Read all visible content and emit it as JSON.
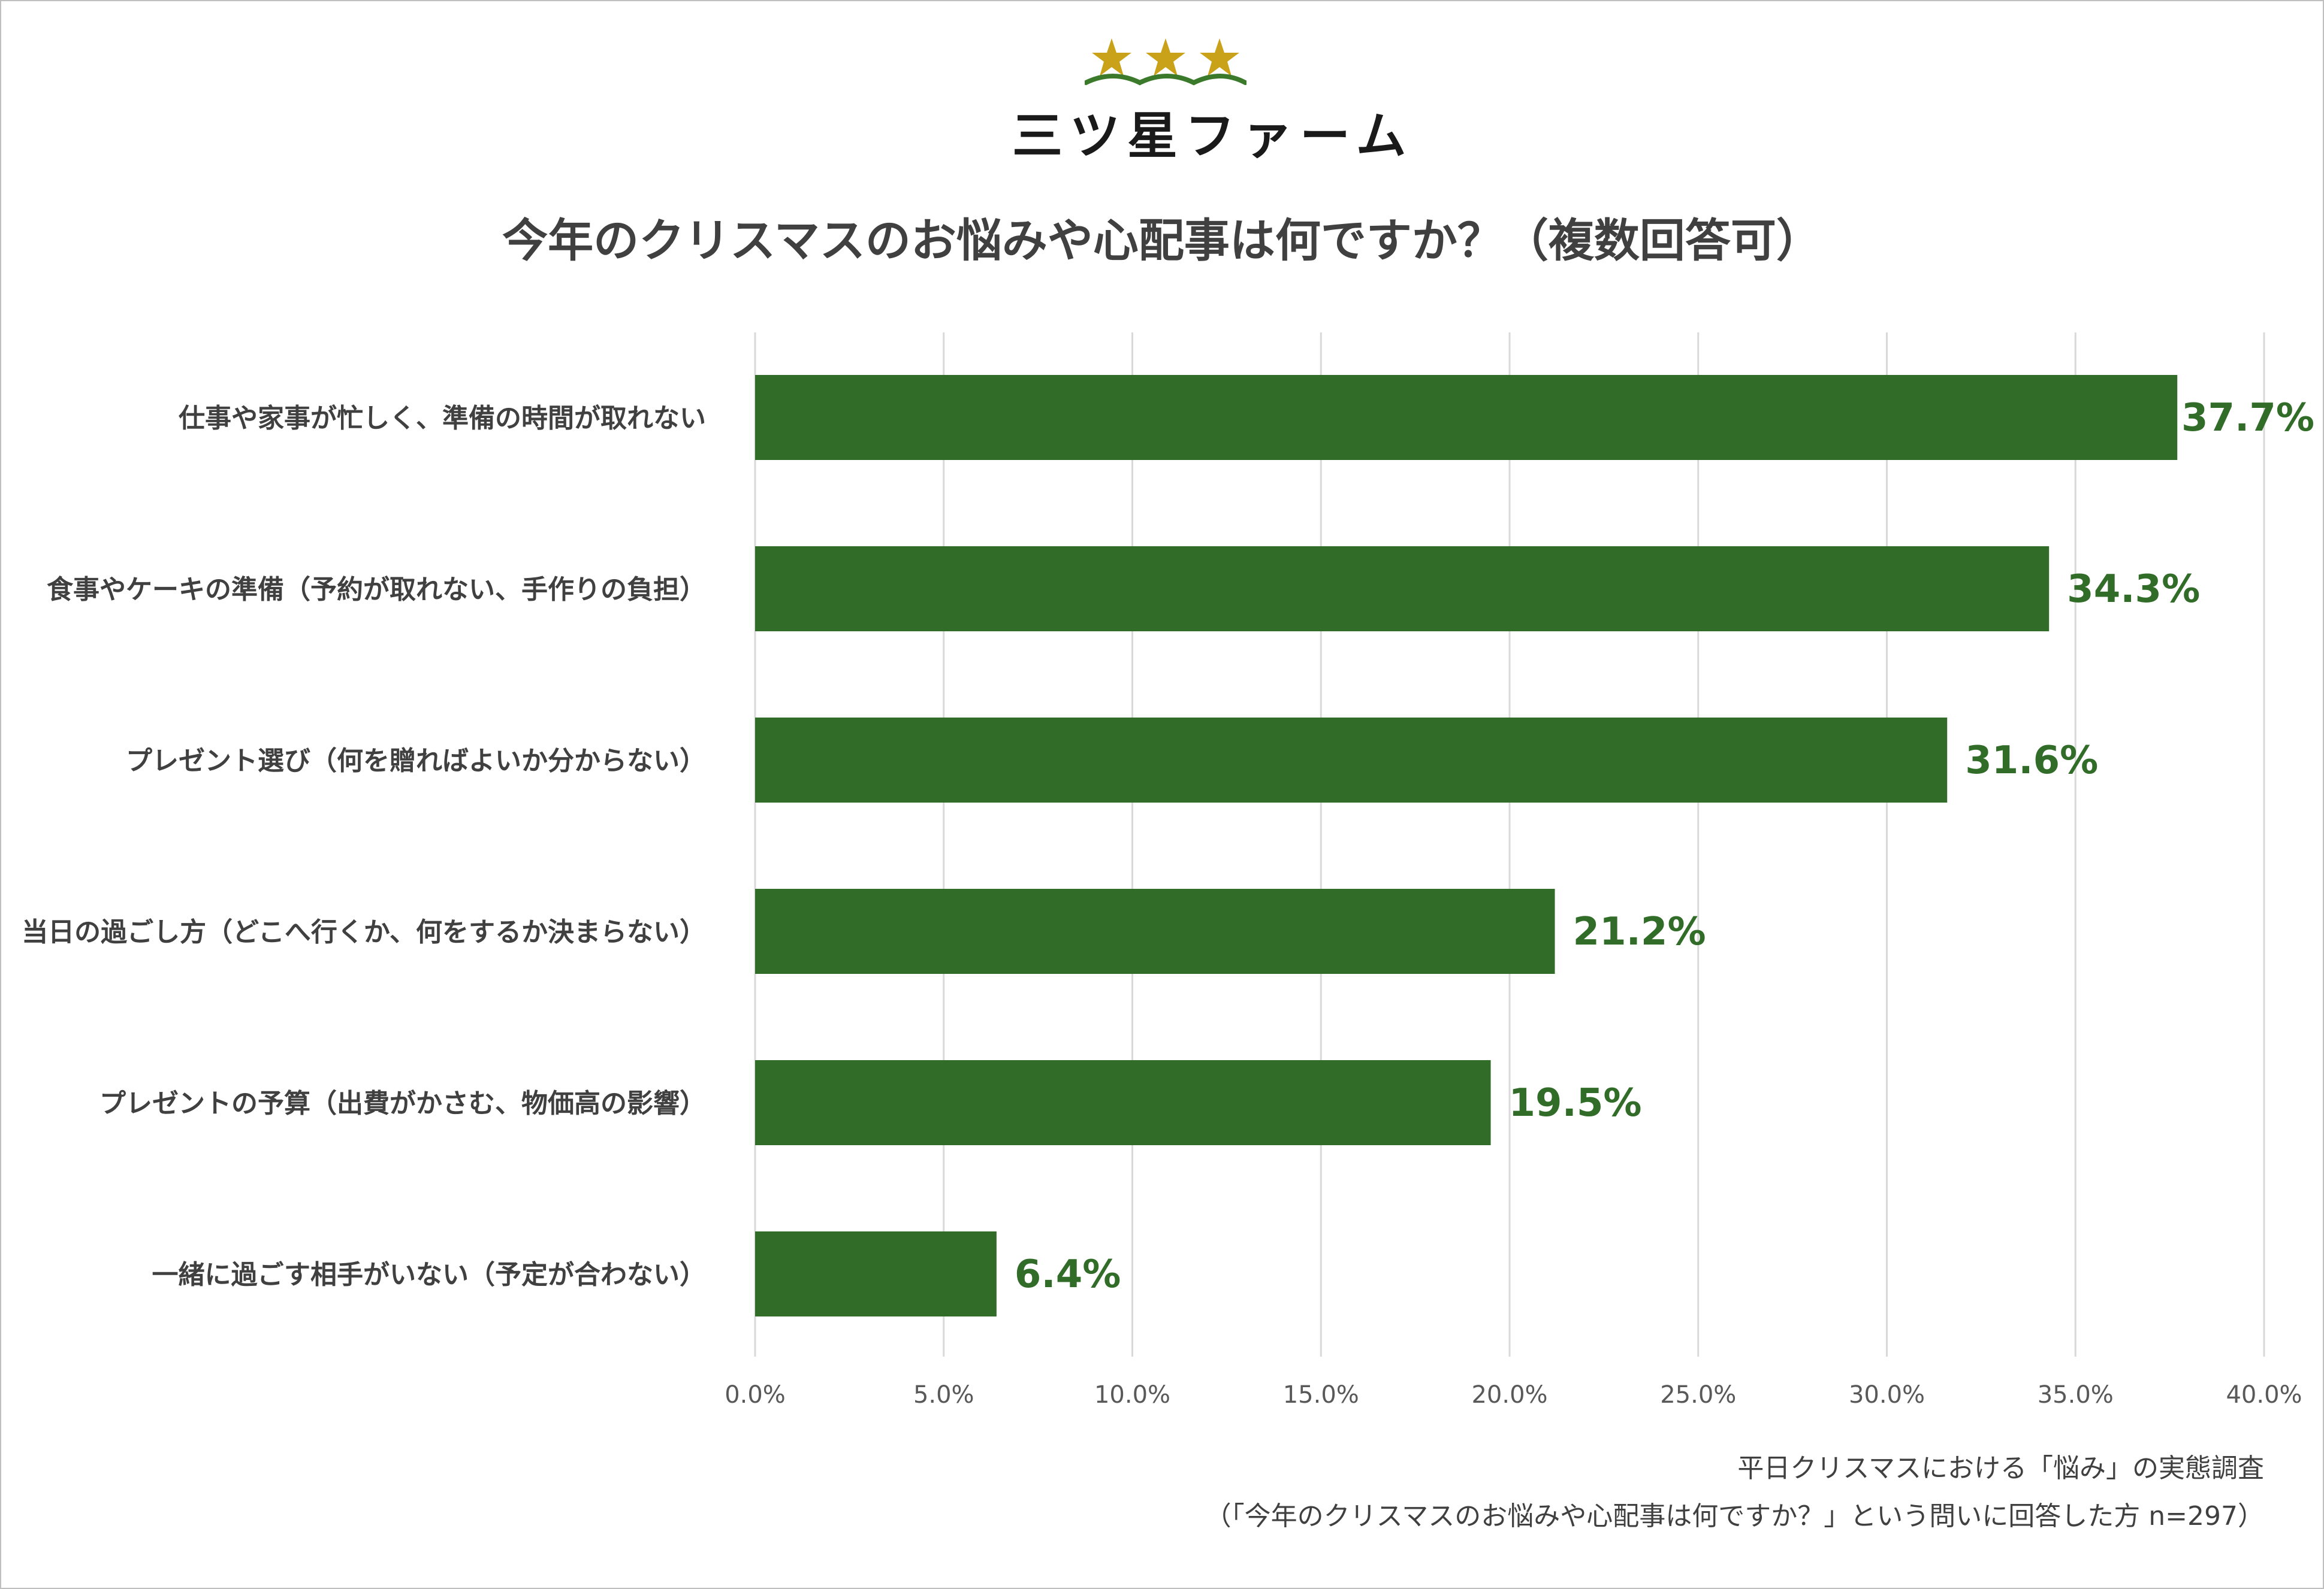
{
  "brand": {
    "name": "三ツ星ファーム",
    "logo_colors": {
      "star": "#c9a21a",
      "wave": "#3b7a2b"
    }
  },
  "colors": {
    "bar": "#316d28",
    "value_label": "#316d28",
    "grid": "#d9d9d9",
    "text": "#404040"
  },
  "footnote": {
    "line1": "平日クリスマスにおける「悩み」の実態調査",
    "line2": "（「今年のクリスマスのお悩みや心配事は何ですか？」という問いに回答した方 n=297）"
  },
  "chart_data": {
    "type": "bar",
    "orientation": "horizontal",
    "title": "今年のクリスマスのお悩みや心配事は何ですか？（複数回答可）",
    "categories": [
      "仕事や家事が忙しく、準備の時間が取れない",
      "食事やケーキの準備（予約が取れない、手作りの負担）",
      "プレゼント選び（何を贈ればよいか分からない）",
      "当日の過ごし方（どこへ行くか、何をするか決まらない）",
      "プレゼントの予算（出費がかさむ、物価高の影響）",
      "一緒に過ごす相手がいない（予定が合わない）"
    ],
    "values": [
      37.7,
      34.3,
      31.6,
      21.2,
      19.5,
      6.4
    ],
    "value_labels": [
      "37.7%",
      "34.3%",
      "31.6%",
      "21.2%",
      "19.5%",
      "6.4%"
    ],
    "xlim": [
      0,
      40
    ],
    "ticks": [
      0,
      5,
      10,
      15,
      20,
      25,
      30,
      35,
      40
    ],
    "tick_labels": [
      "0.0%",
      "5.0%",
      "10.0%",
      "15.0%",
      "20.0%",
      "25.0%",
      "30.0%",
      "35.0%",
      "40.0%"
    ],
    "grid": true,
    "legend": false
  }
}
